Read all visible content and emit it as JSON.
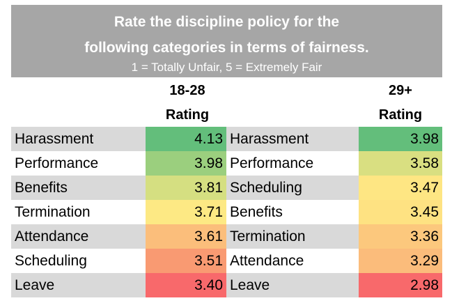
{
  "title_line1": "Rate the discipline policy for the",
  "title_line2": "following categories in terms of fairness.",
  "scale_note": "1 = Totally Unfair, 5 = Extremely Fair",
  "chart_data": [
    {
      "type": "table",
      "group": "18-28",
      "column_label": "Rating",
      "rows": [
        {
          "category": "Harassment",
          "value": "4.13",
          "color": "#63be7b"
        },
        {
          "category": "Performance",
          "value": "3.98",
          "color": "#9bcf7e"
        },
        {
          "category": "Benefits",
          "value": "3.81",
          "color": "#d5df81"
        },
        {
          "category": "Termination",
          "value": "3.71",
          "color": "#fde984"
        },
        {
          "category": "Attendance",
          "value": "3.61",
          "color": "#fbbe7b"
        },
        {
          "category": "Scheduling",
          "value": "3.51",
          "color": "#f99a72"
        },
        {
          "category": "Leave",
          "value": "3.40",
          "color": "#f8696b"
        }
      ]
    },
    {
      "type": "table",
      "group": "29+",
      "column_label": "Rating",
      "rows": [
        {
          "category": "Harassment",
          "value": "3.98",
          "color": "#63be7b"
        },
        {
          "category": "Performance",
          "value": "3.58",
          "color": "#d9df81"
        },
        {
          "category": "Scheduling",
          "value": "3.47",
          "color": "#fee683"
        },
        {
          "category": "Benefits",
          "value": "3.45",
          "color": "#fee282"
        },
        {
          "category": "Termination",
          "value": "3.36",
          "color": "#fcc87d"
        },
        {
          "category": "Attendance",
          "value": "3.29",
          "color": "#fbbc7b"
        },
        {
          "category": "Leave",
          "value": "2.98",
          "color": "#f8696b"
        }
      ]
    }
  ]
}
